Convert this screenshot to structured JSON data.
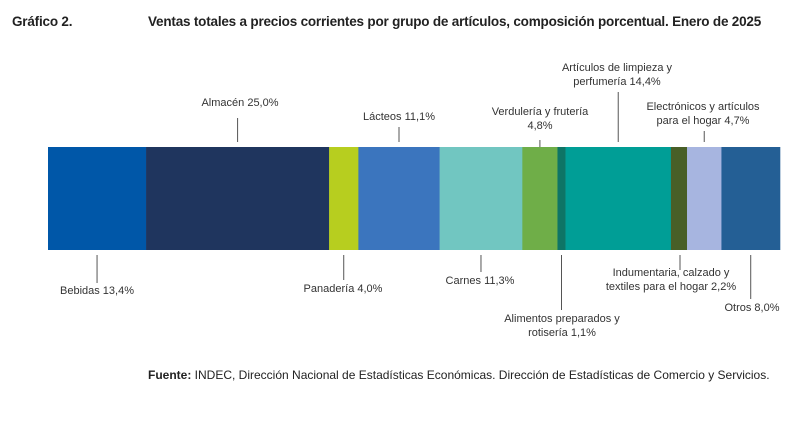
{
  "header": {
    "figure_label": "Gráfico 2.",
    "title": "Ventas totales a precios corrientes por grupo de artículos, composición porcentual. Enero de 2025"
  },
  "chart_data": {
    "type": "bar",
    "title": "Ventas totales a precios corrientes por grupo de artículos, composición porcentual. Enero de 2025",
    "stacked": true,
    "orientation": "horizontal",
    "unit": "%",
    "series": [
      {
        "label": [
          "Bebidas 13,4%"
        ],
        "value": 13.4,
        "color": "#0057A8",
        "label_side": "below"
      },
      {
        "label": [
          "Almacén 25,0%"
        ],
        "value": 25.0,
        "color": "#1F355E",
        "label_side": "above"
      },
      {
        "label": [
          "Panadería 4,0%"
        ],
        "value": 4.0,
        "color": "#B7CE1F",
        "label_side": "below"
      },
      {
        "label": [
          "Lácteos 11,1%"
        ],
        "value": 11.1,
        "color": "#3B75BE",
        "label_side": "above"
      },
      {
        "label": [
          "Carnes 11,3%"
        ],
        "value": 11.3,
        "color": "#71C6C1",
        "label_side": "below"
      },
      {
        "label": [
          "Verdulería y frutería",
          "4,8%"
        ],
        "value": 4.8,
        "color": "#6FAE48",
        "label_side": "above"
      },
      {
        "label": [
          "Alimentos preparados y",
          "rotisería 1,1%"
        ],
        "value": 1.1,
        "color": "#0E7566",
        "label_side": "below"
      },
      {
        "label": [
          "Artículos de limpieza y",
          "perfumería 14,4%"
        ],
        "value": 14.4,
        "color": "#009E96",
        "label_side": "above"
      },
      {
        "label": [
          "Indumentaria, calzado y",
          "textiles para el hogar 2,2%"
        ],
        "value": 2.2,
        "color": "#485F27",
        "label_side": "below"
      },
      {
        "label": [
          "Electrónicos y artículos",
          "para el hogar 4,7%"
        ],
        "value": 4.7,
        "color": "#A7B5E0",
        "label_side": "above"
      },
      {
        "label": [
          "Otros 8,0%"
        ],
        "value": 8.0,
        "color": "#245F95",
        "label_side": "below"
      }
    ]
  },
  "source": {
    "label": "Fuente:",
    "text": " INDEC, Dirección Nacional de Estadísticas Económicas. Dirección de Estadísticas de Comercio y Servicios."
  }
}
